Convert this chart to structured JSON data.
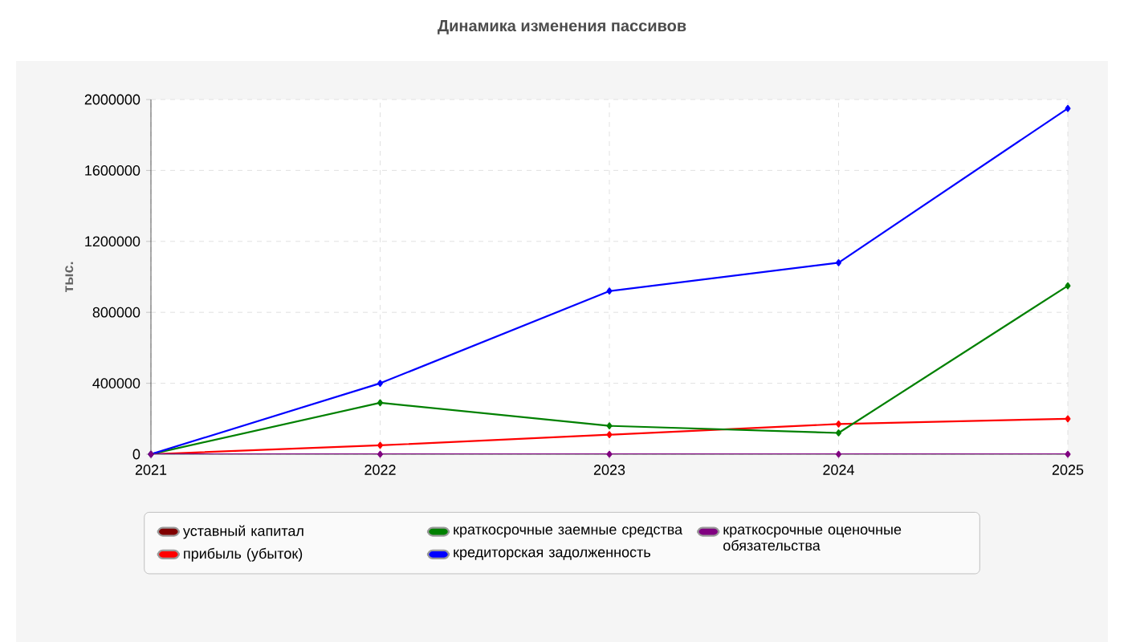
{
  "chart_data": {
    "type": "line",
    "title": "Динамика изменения пассивов",
    "ylabel": "тыс.",
    "x": [
      2021,
      2022,
      2023,
      2024,
      2025
    ],
    "xlim": [
      2021,
      2025
    ],
    "xticks": [
      2021,
      2022,
      2023,
      2024,
      2025
    ],
    "ylim": [
      0,
      2000000
    ],
    "yticks": [
      0,
      400000,
      800000,
      1200000,
      1600000,
      2000000
    ],
    "grid": true,
    "legend": "bottom",
    "marker": "diamond",
    "line_style": "solid",
    "series": [
      {
        "name": "уставный капитал",
        "color": "#800000",
        "values": [
          null,
          null,
          null,
          null,
          null
        ]
      },
      {
        "name": "прибыль (убыток)",
        "color": "#ff0000",
        "values": [
          0,
          50000,
          110000,
          170000,
          200000
        ]
      },
      {
        "name": "краткосрочные заемные средства",
        "color": "#008000",
        "values": [
          0,
          290000,
          160000,
          120000,
          950000
        ]
      },
      {
        "name": "кредиторская задолженность",
        "color": "#0000ff",
        "values": [
          0,
          400000,
          920000,
          1080000,
          1950000
        ]
      },
      {
        "name": "краткосрочные оценочные обязательства",
        "color": "#800080",
        "values": [
          0,
          0,
          0,
          0,
          0
        ]
      }
    ]
  }
}
